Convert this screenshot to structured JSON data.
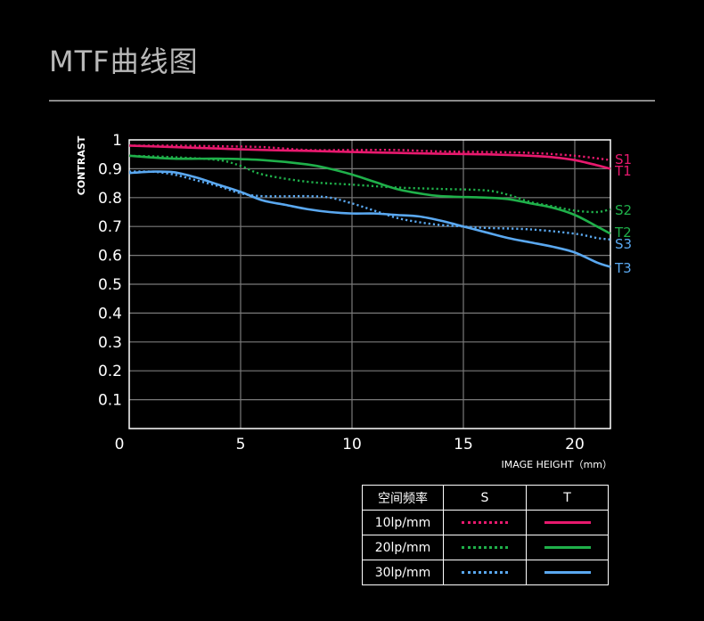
{
  "header": {
    "title": "MTF曲线图"
  },
  "chart_data": {
    "type": "line",
    "title": "",
    "xlabel": "IMAGE HEIGHT（mm）",
    "ylabel": "CONTRAST",
    "xlim": [
      0,
      21.6
    ],
    "ylim": [
      0,
      1
    ],
    "x_ticks": [
      "0",
      "5",
      "10",
      "15",
      "20"
    ],
    "y_ticks": [
      "0.1",
      "0.2",
      "0.3",
      "0.4",
      "0.5",
      "0.6",
      "0.7",
      "0.8",
      "0.9",
      "1"
    ],
    "grid": true,
    "series": [
      {
        "name": "S1",
        "style": "dotted",
        "color": "#e8196e",
        "x": [
          0,
          2,
          4,
          6,
          8,
          10,
          12,
          14,
          16,
          18,
          20,
          21.6
        ],
        "y": [
          0.98,
          0.98,
          0.978,
          0.975,
          0.965,
          0.965,
          0.965,
          0.96,
          0.958,
          0.955,
          0.945,
          0.93
        ]
      },
      {
        "name": "T1",
        "style": "solid",
        "color": "#e8196e",
        "x": [
          0,
          2,
          4,
          6,
          8,
          10,
          12,
          14,
          16,
          18,
          19,
          20,
          21,
          21.6
        ],
        "y": [
          0.98,
          0.975,
          0.97,
          0.965,
          0.962,
          0.958,
          0.955,
          0.952,
          0.95,
          0.945,
          0.94,
          0.93,
          0.912,
          0.9
        ]
      },
      {
        "name": "S2",
        "style": "dotted",
        "color": "#1fb04a",
        "x": [
          0,
          2,
          4,
          5,
          6,
          8,
          10,
          12,
          14,
          16,
          17,
          18,
          19,
          20,
          21,
          21.6
        ],
        "y": [
          0.945,
          0.94,
          0.93,
          0.91,
          0.88,
          0.855,
          0.845,
          0.835,
          0.83,
          0.825,
          0.81,
          0.785,
          0.77,
          0.755,
          0.75,
          0.76
        ]
      },
      {
        "name": "T2",
        "style": "solid",
        "color": "#1fb04a",
        "x": [
          0,
          2,
          4,
          6,
          8,
          9,
          10,
          11,
          12,
          13,
          14,
          16,
          17,
          18,
          19,
          20,
          21,
          21.6
        ],
        "y": [
          0.945,
          0.935,
          0.935,
          0.93,
          0.915,
          0.9,
          0.88,
          0.855,
          0.83,
          0.815,
          0.805,
          0.8,
          0.795,
          0.78,
          0.765,
          0.74,
          0.7,
          0.675
        ]
      },
      {
        "name": "S3",
        "style": "dotted",
        "color": "#5aa8f0",
        "x": [
          0,
          1,
          2,
          3,
          4,
          5,
          6,
          8,
          9,
          10,
          11,
          12,
          13,
          14,
          15,
          16,
          18,
          20,
          21,
          21.6
        ],
        "y": [
          0.89,
          0.89,
          0.88,
          0.86,
          0.84,
          0.815,
          0.805,
          0.805,
          0.8,
          0.78,
          0.755,
          0.73,
          0.715,
          0.705,
          0.7,
          0.695,
          0.69,
          0.675,
          0.66,
          0.655
        ]
      },
      {
        "name": "T3",
        "style": "solid",
        "color": "#5aa8f0",
        "x": [
          0,
          1,
          2,
          3,
          4,
          5,
          6,
          7,
          8,
          9,
          10,
          11,
          12,
          13,
          14,
          15,
          16,
          17,
          18,
          19,
          20,
          21,
          21.6
        ],
        "y": [
          0.885,
          0.89,
          0.888,
          0.87,
          0.845,
          0.82,
          0.79,
          0.775,
          0.76,
          0.75,
          0.745,
          0.745,
          0.74,
          0.735,
          0.72,
          0.7,
          0.68,
          0.66,
          0.645,
          0.63,
          0.61,
          0.575,
          0.56
        ]
      }
    ]
  },
  "legend_table": {
    "headers": [
      "空间频率",
      "S",
      "T"
    ],
    "rows": [
      {
        "label": "10lp/mm",
        "color": "#e8196e"
      },
      {
        "label": "20lp/mm",
        "color": "#1fb04a"
      },
      {
        "label": "30lp/mm",
        "color": "#5aa8f0"
      }
    ]
  }
}
